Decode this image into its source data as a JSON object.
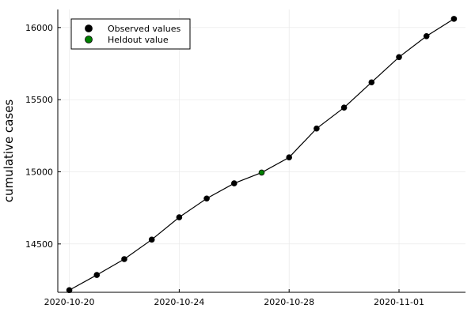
{
  "chart_data": {
    "type": "scatter",
    "title": "",
    "xlabel": "",
    "ylabel": "cumulative cases",
    "x": [
      "2020-10-20",
      "2020-10-21",
      "2020-10-22",
      "2020-10-23",
      "2020-10-24",
      "2020-10-25",
      "2020-10-26",
      "2020-10-27",
      "2020-10-28",
      "2020-10-29",
      "2020-10-30",
      "2020-10-31",
      "2020-11-01",
      "2020-11-02",
      "2020-11-03"
    ],
    "series": [
      {
        "name": "Observed values",
        "color": "#000000",
        "points": [
          {
            "x": "2020-10-20",
            "y": 14180
          },
          {
            "x": "2020-10-21",
            "y": 14285
          },
          {
            "x": "2020-10-22",
            "y": 14395
          },
          {
            "x": "2020-10-23",
            "y": 14530
          },
          {
            "x": "2020-10-24",
            "y": 14685
          },
          {
            "x": "2020-10-25",
            "y": 14815
          },
          {
            "x": "2020-10-26",
            "y": 14920
          },
          {
            "x": "2020-10-28",
            "y": 15100
          },
          {
            "x": "2020-10-29",
            "y": 15300
          },
          {
            "x": "2020-10-30",
            "y": 15445
          },
          {
            "x": "2020-10-31",
            "y": 15620
          },
          {
            "x": "2020-11-01",
            "y": 15795
          },
          {
            "x": "2020-11-02",
            "y": 15940
          },
          {
            "x": "2020-11-03",
            "y": 16060
          }
        ]
      },
      {
        "name": "Heldout value",
        "color": "#008000",
        "points": [
          {
            "x": "2020-10-27",
            "y": 14995
          }
        ]
      }
    ],
    "line": {
      "color": "#000000"
    },
    "xticks": [
      "2020-10-20",
      "2020-10-24",
      "2020-10-28",
      "2020-11-01"
    ],
    "yticks": [
      14500,
      15000,
      15500,
      16000
    ],
    "xlim": [
      "2020-10-19.58",
      "2020-11-03.42"
    ],
    "ylim": [
      14165,
      16125
    ],
    "grid": true,
    "legend_position": "top-left"
  }
}
